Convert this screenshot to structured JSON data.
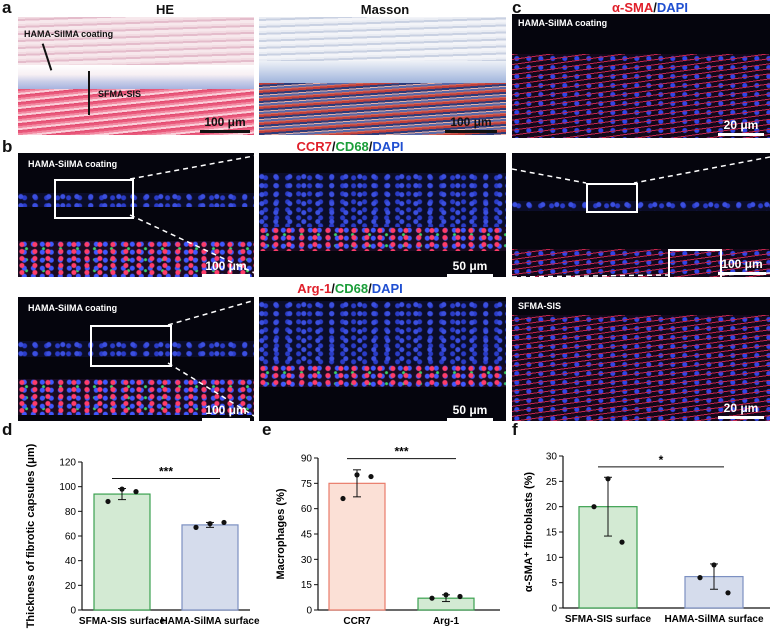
{
  "panel_labels": {
    "a": "a",
    "b": "b",
    "c": "c",
    "d": "d",
    "e": "e",
    "f": "f"
  },
  "panel_a": {
    "he_title": "HE",
    "masson_title": "Masson",
    "coating_label": "HAMA-SilMA coating",
    "sis_label": "SFMA-SIS",
    "scale_he": "100 μm",
    "scale_masson": "100 μm"
  },
  "panel_b": {
    "stain1": {
      "a": "CCR7",
      "sep1": "/",
      "b": "CD68",
      "sep2": "/",
      "c": "DAPI"
    },
    "stain2": {
      "a": "Arg-1",
      "sep1": "/",
      "b": "CD68",
      "sep2": "/",
      "c": "DAPI"
    },
    "coating_label_1": "HAMA-SilMA coating",
    "coating_label_2": "HAMA-SilMA coating",
    "scale_1_left": "100 μm",
    "scale_1_right": "50 μm",
    "scale_2_left": "100 μm",
    "scale_2_right": "50 μm"
  },
  "panel_c": {
    "stain": {
      "a": "α-SMA",
      "sep": "/",
      "b": "DAPI"
    },
    "coating_label": "HAMA-SilMA coating",
    "sis_label": "SFMA-SIS",
    "scale_top": "20 μm",
    "scale_mid": "100 μm",
    "scale_bot": "20 μm"
  },
  "chart_data": [
    {
      "type": "bar",
      "panel": "d",
      "categories": [
        "SFMA-SIS surface",
        "HAMA-SilMA surface"
      ],
      "values": [
        94,
        69
      ],
      "errors": [
        4.5,
        2
      ],
      "points": [
        [
          88,
          98,
          96
        ],
        [
          67,
          70,
          71
        ]
      ],
      "xlabel": "",
      "ylabel": "Thickness of fibrotic capsules (μm)",
      "ylim": [
        0,
        120
      ],
      "yticks": [
        "0",
        "20",
        "40",
        "60",
        "80",
        "100",
        "120"
      ],
      "significance": "***",
      "colors": {
        "fill": [
          "#d3ead3",
          "#d5dcec"
        ],
        "edge": [
          "#3ba150",
          "#7c90c2"
        ]
      }
    },
    {
      "type": "bar",
      "panel": "e",
      "categories": [
        "CCR7",
        "Arg-1"
      ],
      "values": [
        75,
        7
      ],
      "errors": [
        8,
        2
      ],
      "points": [
        [
          66,
          80,
          79
        ],
        [
          7,
          9,
          8
        ]
      ],
      "xlabel": "",
      "ylabel": "Macrophages (%)",
      "ylim": [
        0,
        90
      ],
      "yticks": [
        "0",
        "15",
        "30",
        "45",
        "60",
        "75",
        "90"
      ],
      "significance": "***",
      "colors": {
        "fill": [
          "#fbe0d6",
          "#d3ead3"
        ],
        "edge": [
          "#e97b6a",
          "#3ba150"
        ]
      }
    },
    {
      "type": "bar",
      "panel": "f",
      "categories": [
        "SFMA-SIS surface",
        "HAMA-SilMA surface"
      ],
      "values": [
        20,
        6.2
      ],
      "errors": [
        5.8,
        2.5
      ],
      "points": [
        [
          20,
          25.5,
          13
        ],
        [
          6,
          8.5,
          3
        ]
      ],
      "xlabel": "",
      "ylabel": "α-SMA⁺ fibroblasts (%)",
      "ylim": [
        0,
        30
      ],
      "yticks": [
        "0",
        "5",
        "10",
        "15",
        "20",
        "25",
        "30"
      ],
      "significance": "*",
      "colors": {
        "fill": [
          "#d3ead3",
          "#d5dcec"
        ],
        "edge": [
          "#3ba150",
          "#7c90c2"
        ]
      }
    }
  ]
}
